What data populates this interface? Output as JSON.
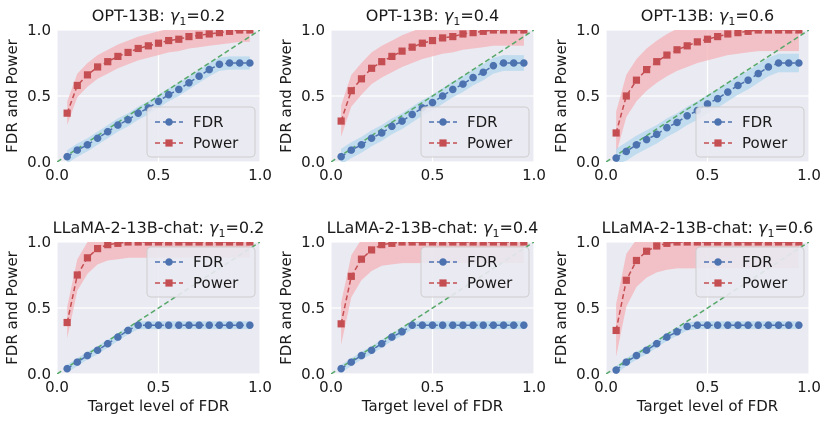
{
  "colors": {
    "panel_bg": "#eaeaf2",
    "grid": "#ffffff",
    "fdr": "#4c72b0",
    "fdr_band": "#b5d8ec",
    "power": "#c44e52",
    "power_band": "#f4b6bc",
    "diagonal": "#55a868"
  },
  "chart_data": [
    {
      "type": "line",
      "title": "OPT-13B: γ₁=0.2",
      "title_prefix": "OPT-13B: ",
      "gamma_value": "0.2",
      "xlabel": "",
      "ylabel": "FDR and Power",
      "xlim": [
        0,
        1
      ],
      "ylim": [
        0,
        1
      ],
      "xticks": [
        "0.0",
        "0.5",
        "1.0"
      ],
      "yticks": [
        "0.0",
        "0.5",
        "1.0"
      ],
      "legend": "lower-right",
      "x": [
        0.05,
        0.1,
        0.15,
        0.2,
        0.25,
        0.3,
        0.35,
        0.4,
        0.45,
        0.5,
        0.55,
        0.6,
        0.65,
        0.7,
        0.75,
        0.8,
        0.85,
        0.9,
        0.95
      ],
      "series": [
        {
          "name": "FDR",
          "values": [
            0.04,
            0.09,
            0.13,
            0.18,
            0.23,
            0.28,
            0.32,
            0.37,
            0.41,
            0.46,
            0.51,
            0.55,
            0.6,
            0.65,
            0.7,
            0.74,
            0.75,
            0.75,
            0.75
          ],
          "band": 0.05
        },
        {
          "name": "Power",
          "values": [
            0.37,
            0.58,
            0.66,
            0.72,
            0.76,
            0.8,
            0.83,
            0.86,
            0.88,
            0.9,
            0.92,
            0.93,
            0.95,
            0.96,
            0.97,
            0.98,
            0.99,
            1.0,
            1.0
          ],
          "band": 0.09
        }
      ]
    },
    {
      "type": "line",
      "title": "OPT-13B: γ₁=0.4",
      "title_prefix": "OPT-13B: ",
      "gamma_value": "0.4",
      "xlabel": "",
      "ylabel": "FDR and Power",
      "xlim": [
        0,
        1
      ],
      "ylim": [
        0,
        1
      ],
      "xticks": [
        "0.0",
        "0.5",
        "1.0"
      ],
      "yticks": [
        "0.0",
        "0.5",
        "1.0"
      ],
      "legend": "lower-right",
      "x": [
        0.05,
        0.1,
        0.15,
        0.2,
        0.25,
        0.3,
        0.35,
        0.4,
        0.45,
        0.5,
        0.55,
        0.6,
        0.65,
        0.7,
        0.75,
        0.8,
        0.85,
        0.9,
        0.95
      ],
      "series": [
        {
          "name": "FDR",
          "values": [
            0.04,
            0.09,
            0.13,
            0.18,
            0.22,
            0.27,
            0.31,
            0.36,
            0.41,
            0.45,
            0.5,
            0.55,
            0.59,
            0.64,
            0.68,
            0.73,
            0.75,
            0.75,
            0.75
          ],
          "band": 0.06
        },
        {
          "name": "Power",
          "values": [
            0.31,
            0.54,
            0.63,
            0.71,
            0.76,
            0.8,
            0.84,
            0.87,
            0.9,
            0.92,
            0.94,
            0.95,
            0.97,
            0.98,
            0.99,
            1.0,
            1.0,
            1.0,
            1.0
          ],
          "band": 0.12
        }
      ]
    },
    {
      "type": "line",
      "title": "OPT-13B: γ₁=0.6",
      "title_prefix": "OPT-13B: ",
      "gamma_value": "0.6",
      "xlabel": "",
      "ylabel": "FDR and Power",
      "xlim": [
        0,
        1
      ],
      "ylim": [
        0,
        1
      ],
      "xticks": [
        "0.0",
        "0.5",
        "1.0"
      ],
      "yticks": [
        "0.0",
        "0.5",
        "1.0"
      ],
      "legend": "lower-right",
      "x": [
        0.05,
        0.1,
        0.15,
        0.2,
        0.25,
        0.3,
        0.35,
        0.4,
        0.45,
        0.5,
        0.55,
        0.6,
        0.65,
        0.7,
        0.75,
        0.8,
        0.85,
        0.9,
        0.95
      ],
      "series": [
        {
          "name": "FDR",
          "values": [
            0.03,
            0.08,
            0.13,
            0.17,
            0.21,
            0.26,
            0.3,
            0.35,
            0.39,
            0.44,
            0.48,
            0.53,
            0.58,
            0.62,
            0.67,
            0.72,
            0.75,
            0.75,
            0.75
          ],
          "band": 0.07
        },
        {
          "name": "Power",
          "values": [
            0.22,
            0.5,
            0.62,
            0.7,
            0.76,
            0.81,
            0.85,
            0.88,
            0.91,
            0.93,
            0.95,
            0.97,
            0.98,
            0.99,
            1.0,
            1.0,
            1.0,
            1.0,
            1.0
          ],
          "band": 0.16
        }
      ]
    },
    {
      "type": "line",
      "title": "LLaMA-2-13B-chat: γ₁=0.2",
      "title_prefix": "LLaMA-2-13B-chat: ",
      "gamma_value": "0.2",
      "xlabel": "Target level of FDR",
      "ylabel": "FDR and Power",
      "xlim": [
        0,
        1
      ],
      "ylim": [
        0,
        1
      ],
      "xticks": [
        "0.0",
        "0.5",
        "1.0"
      ],
      "yticks": [
        "0.0",
        "0.5",
        "1.0"
      ],
      "legend": "top-right",
      "x": [
        0.05,
        0.1,
        0.15,
        0.2,
        0.25,
        0.3,
        0.35,
        0.4,
        0.45,
        0.5,
        0.55,
        0.6,
        0.65,
        0.7,
        0.75,
        0.8,
        0.85,
        0.9,
        0.95
      ],
      "series": [
        {
          "name": "FDR",
          "values": [
            0.04,
            0.09,
            0.14,
            0.18,
            0.23,
            0.28,
            0.33,
            0.37,
            0.37,
            0.37,
            0.37,
            0.37,
            0.37,
            0.37,
            0.37,
            0.37,
            0.37,
            0.37,
            0.37
          ],
          "band": 0.03
        },
        {
          "name": "Power",
          "values": [
            0.39,
            0.75,
            0.88,
            0.95,
            0.98,
            0.99,
            1.0,
            1.0,
            1.0,
            1.0,
            1.0,
            1.0,
            1.0,
            1.0,
            1.0,
            1.0,
            1.0,
            1.0,
            1.0
          ],
          "band": 0.12
        }
      ]
    },
    {
      "type": "line",
      "title": "LLaMA-2-13B-chat: γ₁=0.4",
      "title_prefix": "LLaMA-2-13B-chat: ",
      "gamma_value": "0.4",
      "xlabel": "Target level of FDR",
      "ylabel": "FDR and Power",
      "xlim": [
        0,
        1
      ],
      "ylim": [
        0,
        1
      ],
      "xticks": [
        "0.0",
        "0.5",
        "1.0"
      ],
      "yticks": [
        "0.0",
        "0.5",
        "1.0"
      ],
      "legend": "top-right",
      "x": [
        0.05,
        0.1,
        0.15,
        0.2,
        0.25,
        0.3,
        0.35,
        0.4,
        0.45,
        0.5,
        0.55,
        0.6,
        0.65,
        0.7,
        0.75,
        0.8,
        0.85,
        0.9,
        0.95
      ],
      "series": [
        {
          "name": "FDR",
          "values": [
            0.04,
            0.09,
            0.14,
            0.18,
            0.23,
            0.28,
            0.32,
            0.37,
            0.37,
            0.37,
            0.37,
            0.37,
            0.37,
            0.37,
            0.37,
            0.37,
            0.37,
            0.37,
            0.37
          ],
          "band": 0.03
        },
        {
          "name": "Power",
          "values": [
            0.38,
            0.74,
            0.87,
            0.94,
            0.98,
            0.99,
            1.0,
            1.0,
            1.0,
            1.0,
            1.0,
            1.0,
            1.0,
            1.0,
            1.0,
            1.0,
            1.0,
            1.0,
            1.0
          ],
          "band": 0.16
        }
      ]
    },
    {
      "type": "line",
      "title": "LLaMA-2-13B-chat: γ₁=0.6",
      "title_prefix": "LLaMA-2-13B-chat: ",
      "gamma_value": "0.6",
      "xlabel": "Target level of FDR",
      "ylabel": "FDR and Power",
      "xlim": [
        0,
        1
      ],
      "ylim": [
        0,
        1
      ],
      "xticks": [
        "0.0",
        "0.5",
        "1.0"
      ],
      "yticks": [
        "0.0",
        "0.5",
        "1.0"
      ],
      "legend": "top-right",
      "x": [
        0.05,
        0.1,
        0.15,
        0.2,
        0.25,
        0.3,
        0.35,
        0.4,
        0.45,
        0.5,
        0.55,
        0.6,
        0.65,
        0.7,
        0.75,
        0.8,
        0.85,
        0.9,
        0.95
      ],
      "series": [
        {
          "name": "FDR",
          "values": [
            0.03,
            0.09,
            0.14,
            0.18,
            0.23,
            0.28,
            0.32,
            0.36,
            0.37,
            0.37,
            0.37,
            0.37,
            0.37,
            0.37,
            0.37,
            0.37,
            0.37,
            0.37,
            0.37
          ],
          "band": 0.03
        },
        {
          "name": "Power",
          "values": [
            0.33,
            0.71,
            0.86,
            0.93,
            0.97,
            0.99,
            1.0,
            1.0,
            1.0,
            1.0,
            1.0,
            1.0,
            1.0,
            1.0,
            1.0,
            1.0,
            1.0,
            1.0,
            1.0
          ],
          "band": 0.2
        }
      ]
    }
  ]
}
